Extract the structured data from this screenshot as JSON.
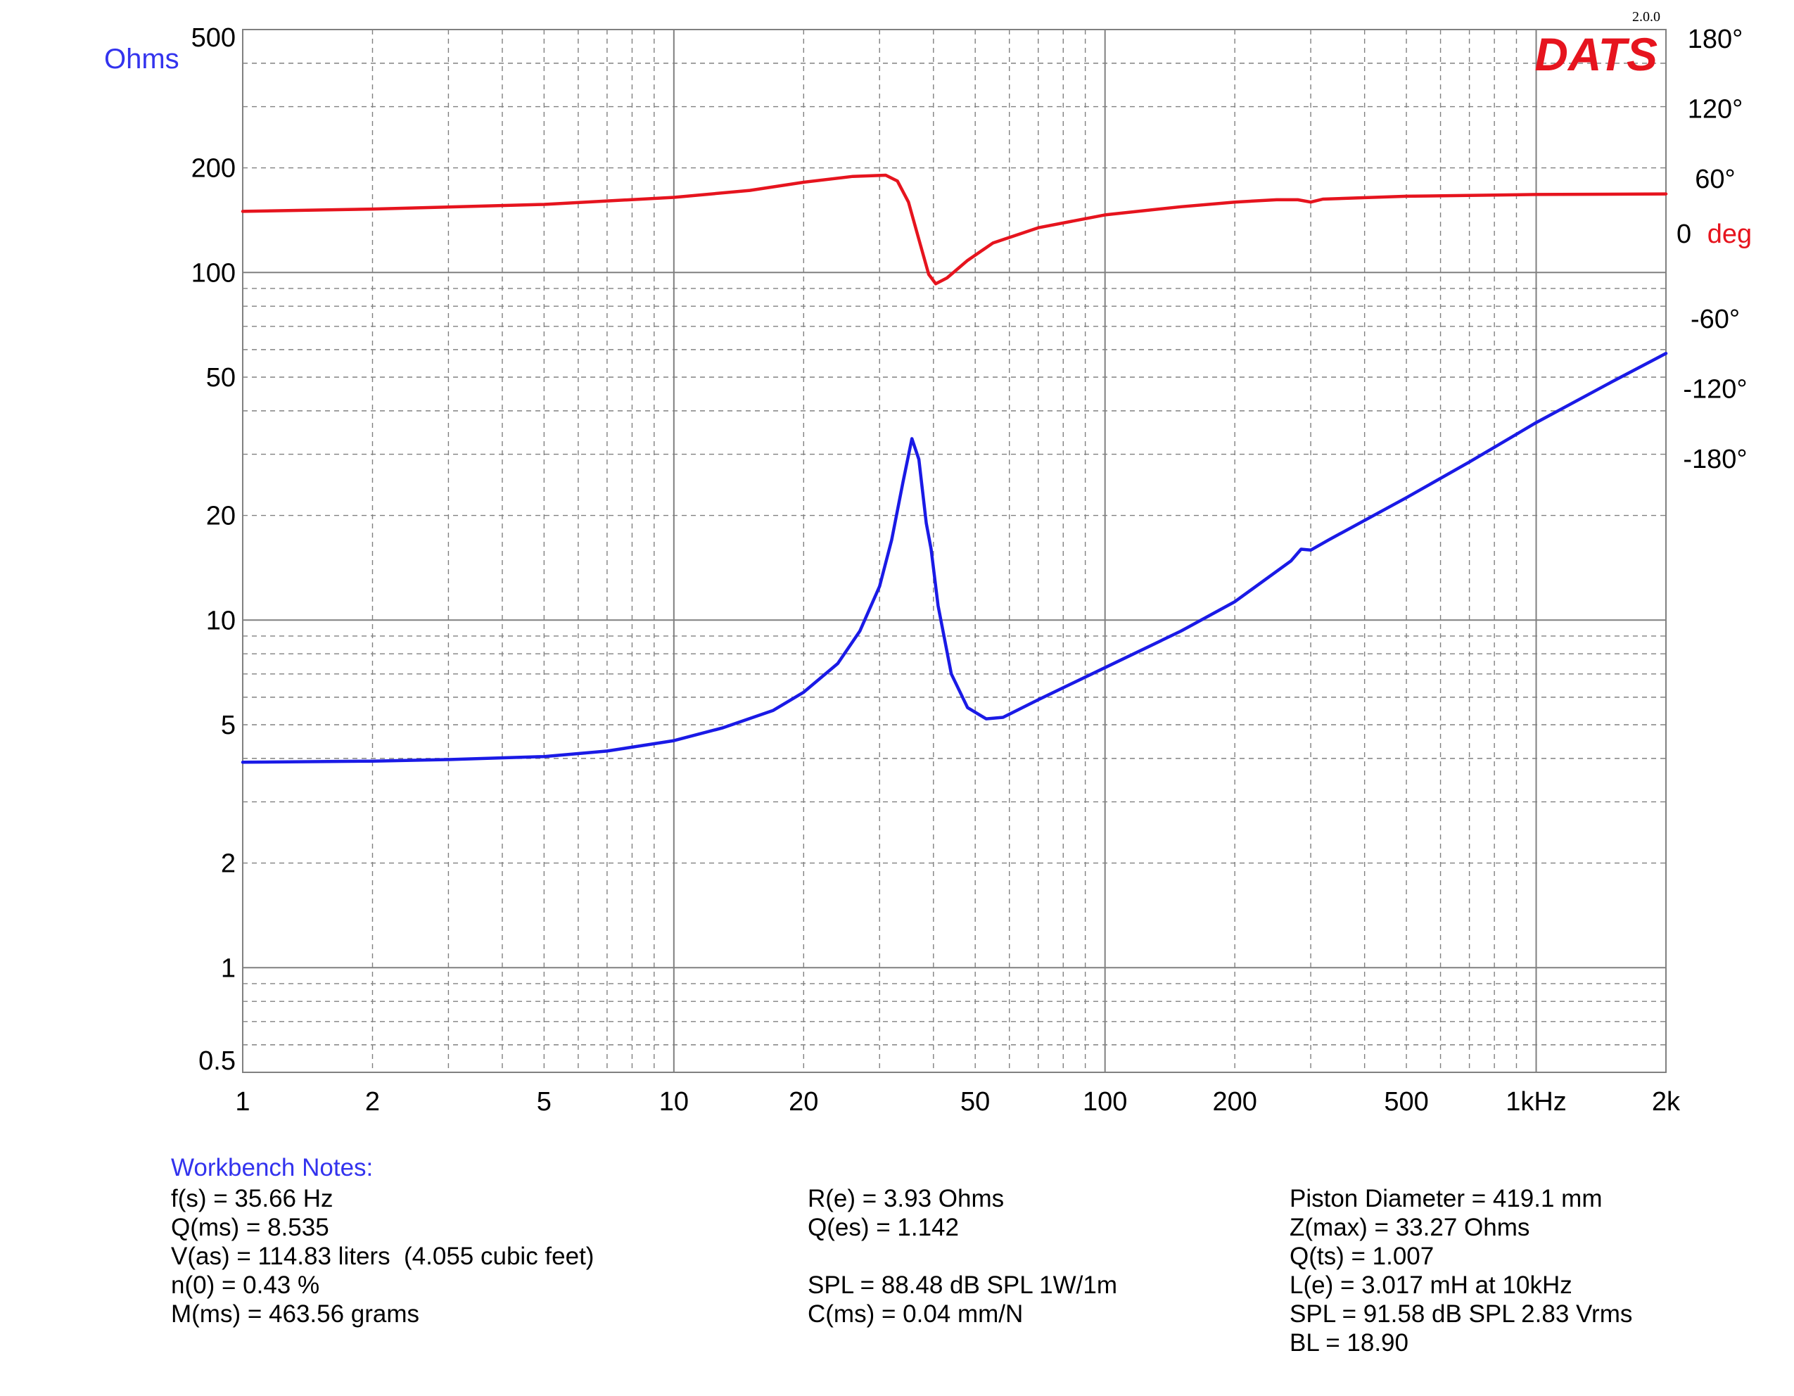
{
  "chart_data": {
    "type": "line",
    "version": "2.0.0",
    "logo": "DATS",
    "colors": {
      "impedance": "#1a1ae6",
      "phase": "#e6141e",
      "ohms_label": "#3333ee",
      "deg_label": "#e6141e",
      "grid": "#808080"
    },
    "x_axis": {
      "scale": "log",
      "range": [
        1,
        2000
      ],
      "tick_values": [
        1,
        2,
        5,
        10,
        20,
        50,
        100,
        200,
        500,
        1000,
        2000
      ],
      "tick_labels": [
        "1",
        "2",
        "5",
        "10",
        "20",
        "50",
        "100",
        "200",
        "500",
        "1kHz",
        "2k"
      ]
    },
    "y_axis_left": {
      "label": "Ohms",
      "scale": "log",
      "range": [
        0.5,
        500
      ],
      "tick_values": [
        500,
        200,
        100,
        50,
        20,
        10,
        5,
        2,
        1,
        0.5
      ],
      "tick_labels": [
        "500",
        "200",
        "100",
        "50",
        "20",
        "10",
        "5",
        "2",
        "1",
        "0.5"
      ]
    },
    "y_axis_right": {
      "label": "deg",
      "zero_label": "0",
      "scale": "linear",
      "tick_values": [
        180,
        120,
        60,
        0,
        -60,
        -120,
        -180
      ],
      "tick_labels": [
        "180°",
        "120°",
        "60°",
        "0",
        "-60°",
        "-120°",
        "-180°"
      ]
    },
    "grid": true,
    "series": [
      {
        "key": "impedance",
        "axis": "left",
        "points": [
          [
            1,
            3.9
          ],
          [
            2,
            3.93
          ],
          [
            3,
            3.97
          ],
          [
            5,
            4.05
          ],
          [
            7,
            4.2
          ],
          [
            10,
            4.5
          ],
          [
            13,
            4.9
          ],
          [
            17,
            5.5
          ],
          [
            20,
            6.2
          ],
          [
            24,
            7.5
          ],
          [
            27,
            9.3
          ],
          [
            30,
            12.5
          ],
          [
            32,
            17
          ],
          [
            34,
            25
          ],
          [
            35.66,
            33.27
          ],
          [
            37,
            29
          ],
          [
            38.5,
            19
          ],
          [
            39.5,
            16
          ],
          [
            41,
            11
          ],
          [
            44,
            7
          ],
          [
            48,
            5.6
          ],
          [
            53,
            5.2
          ],
          [
            58,
            5.25
          ],
          [
            70,
            5.9
          ],
          [
            100,
            7.3
          ],
          [
            150,
            9.3
          ],
          [
            200,
            11.3
          ],
          [
            270,
            14.8
          ],
          [
            285,
            16
          ],
          [
            300,
            15.9
          ],
          [
            330,
            17
          ],
          [
            500,
            22.5
          ],
          [
            700,
            28.5
          ],
          [
            1000,
            37
          ],
          [
            1500,
            48.5
          ],
          [
            2000,
            58.5
          ]
        ]
      },
      {
        "key": "phase",
        "axis": "right",
        "points": [
          [
            1,
            32
          ],
          [
            2,
            34
          ],
          [
            5,
            38
          ],
          [
            10,
            44
          ],
          [
            15,
            50
          ],
          [
            20,
            57
          ],
          [
            26,
            62
          ],
          [
            31,
            63
          ],
          [
            33,
            58
          ],
          [
            35,
            40
          ],
          [
            37,
            8
          ],
          [
            39,
            -22
          ],
          [
            40.5,
            -30
          ],
          [
            43,
            -25
          ],
          [
            48,
            -10
          ],
          [
            55,
            5
          ],
          [
            70,
            18
          ],
          [
            100,
            29
          ],
          [
            150,
            36
          ],
          [
            200,
            40
          ],
          [
            250,
            42
          ],
          [
            280,
            42
          ],
          [
            300,
            40
          ],
          [
            320,
            42.5
          ],
          [
            500,
            45
          ],
          [
            1000,
            46.5
          ],
          [
            2000,
            47
          ]
        ]
      }
    ]
  },
  "notes": {
    "heading": "Workbench Notes:",
    "col1": [
      "f(s) = 35.66 Hz",
      "Q(ms) = 8.535",
      "V(as) = 114.83 liters  (4.055 cubic feet)",
      "n(0) = 0.43 %",
      "M(ms) = 463.56 grams"
    ],
    "col2": [
      "R(e) = 3.93 Ohms",
      "Q(es) = 1.142",
      "",
      "SPL = 88.48 dB SPL 1W/1m",
      "C(ms) = 0.04 mm/N"
    ],
    "col3": [
      "Piston Diameter = 419.1 mm",
      "Z(max) = 33.27 Ohms",
      "Q(ts) = 1.007",
      "L(e) = 3.017 mH at 10kHz",
      "SPL = 91.58 dB SPL 2.83 Vrms",
      "BL = 18.90"
    ]
  }
}
